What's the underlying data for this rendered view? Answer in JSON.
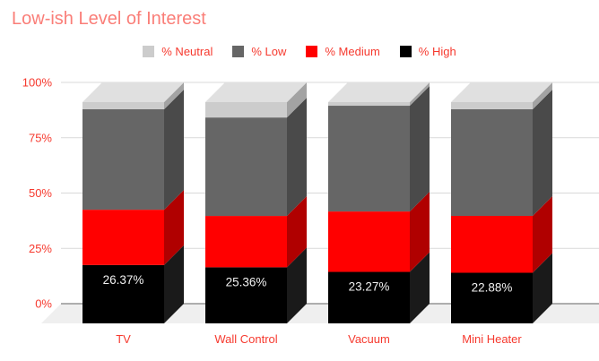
{
  "chart_data": {
    "type": "bar",
    "variant": "3d-stacked-column-100",
    "title": "Low-ish Level of Interest",
    "categories": [
      "TV",
      "Wall Control",
      "Vacuum",
      "Mini Heater"
    ],
    "stack_order_bottom_to_top": [
      "% High",
      "% Medium",
      "% Low",
      "% Neutral"
    ],
    "series": [
      {
        "name": "% High",
        "color": "#000000",
        "side_color": "#1a1a1a",
        "values": [
          26.37,
          25.36,
          23.27,
          22.88
        ],
        "labeled": true
      },
      {
        "name": "% Medium",
        "color": "#ff0000",
        "side_color": "#b00000",
        "values": [
          25.0,
          23.2,
          27.3,
          25.7
        ]
      },
      {
        "name": "% Low",
        "color": "#666666",
        "side_color": "#4a4a4a",
        "values": [
          45.4,
          44.5,
          47.8,
          48.2
        ]
      },
      {
        "name": "% Neutral",
        "color": "#cccccc",
        "side_color": "#a3a3a3",
        "top_color": "#e0e0e0",
        "values": [
          3.23,
          6.94,
          1.63,
          3.22
        ]
      }
    ],
    "data_labels": {
      "series": "% High",
      "values": [
        "26.37%",
        "25.36%",
        "23.27%",
        "22.88%"
      ]
    },
    "legend": {
      "position": "top",
      "items": [
        "% Neutral",
        "% Low",
        "% Medium",
        "% High"
      ]
    },
    "y_axis": {
      "tick_labels": [
        "0%",
        "25%",
        "50%",
        "75%",
        "100%"
      ],
      "tick_values": [
        0,
        25,
        50,
        75,
        100
      ],
      "range": [
        0,
        100
      ]
    },
    "gridlines": true
  },
  "palette": {
    "background": "#ffffff",
    "title_text": "#fa7e78",
    "axis_text": "#f6392e",
    "gridline": "#d9d9d9",
    "zero_line": "#808080",
    "floor": "#efefef",
    "data_label_text": "#f1f1f1"
  }
}
